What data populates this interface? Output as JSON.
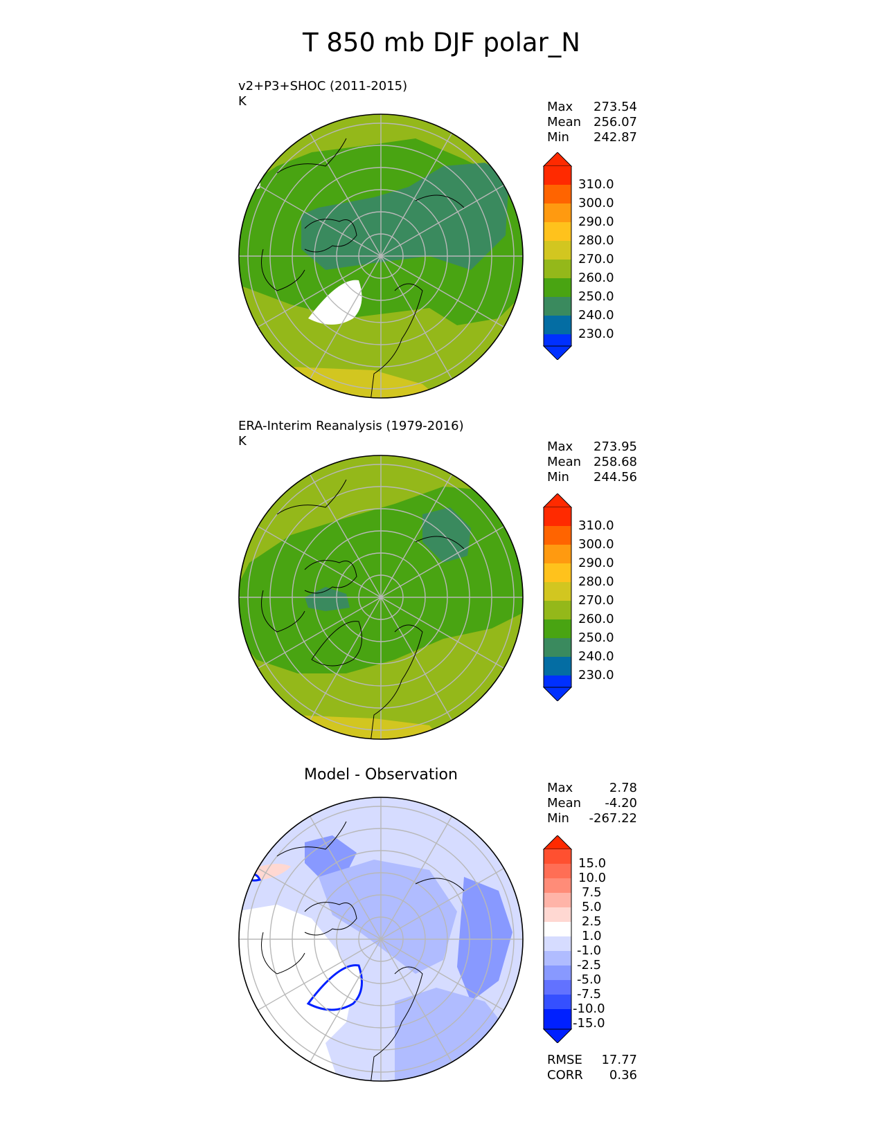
{
  "figure": {
    "title": "T 850 mb DJF polar_N"
  },
  "panels": [
    {
      "id": "test",
      "title_line1": "v2+P3+SHOC (2011-2015)",
      "title_line2": "K",
      "center_title": "",
      "stats": [
        {
          "label": "Max",
          "value": "273.54"
        },
        {
          "label": "Mean",
          "value": "256.07"
        },
        {
          "label": "Min",
          "value": "242.87"
        }
      ],
      "extra_stats": []
    },
    {
      "id": "reference",
      "title_line1": "ERA-Interim Reanalysis (1979-2016)",
      "title_line2": "K",
      "center_title": "",
      "stats": [
        {
          "label": "Max",
          "value": "273.95"
        },
        {
          "label": "Mean",
          "value": "258.68"
        },
        {
          "label": "Min",
          "value": "244.56"
        }
      ],
      "extra_stats": []
    },
    {
      "id": "difference",
      "title_line1": "",
      "title_line2": "",
      "center_title": "Model - Observation",
      "stats": [
        {
          "label": "Max",
          "value": "2.78"
        },
        {
          "label": "Mean",
          "value": "-4.20"
        },
        {
          "label": "Min",
          "value": "-267.22"
        }
      ],
      "extra_stats": [
        {
          "label": "RMSE",
          "value": "17.77"
        },
        {
          "label": "CORR",
          "value": "0.36"
        }
      ]
    }
  ],
  "colorbars": {
    "temperature": {
      "tick_labels": [
        "310.0",
        "300.0",
        "290.0",
        "280.0",
        "270.0",
        "260.0",
        "250.0",
        "240.0",
        "230.0"
      ],
      "colors_top_to_bottom": [
        "#ff2a00",
        "#ff6400",
        "#ff9a10",
        "#ffc21c",
        "#d2c620",
        "#94b81a",
        "#49a412",
        "#3a8a5e",
        "#046da3",
        "#0030ff"
      ]
    },
    "difference": {
      "tick_labels": [
        "15.0",
        "10.0",
        "7.5",
        "5.0",
        "2.5",
        "1.0",
        "-1.0",
        "-2.5",
        "-5.0",
        "-7.5",
        "-10.0",
        "-15.0"
      ],
      "colors_top_to_bottom": [
        "#ff2a00",
        "#ff5030",
        "#ff6e55",
        "#ff8c78",
        "#ffb4a8",
        "#ffd8d2",
        "#ffffff",
        "#d6dcff",
        "#b0bcff",
        "#8899ff",
        "#6272ff",
        "#3550ff",
        "#0020ff"
      ]
    }
  },
  "chart_data": [
    {
      "type": "heatmap",
      "projection": "north polar stereographic",
      "title": "v2+P3+SHOC (2011-2015)",
      "units": "K",
      "stats": {
        "max": 273.54,
        "mean": 256.07,
        "min": 242.87
      },
      "contour_levels": [
        230,
        240,
        250,
        260,
        270,
        280,
        290,
        300,
        310
      ]
    },
    {
      "type": "heatmap",
      "projection": "north polar stereographic",
      "title": "ERA-Interim Reanalysis (1979-2016)",
      "units": "K",
      "stats": {
        "max": 273.95,
        "mean": 258.68,
        "min": 244.56
      },
      "contour_levels": [
        230,
        240,
        250,
        260,
        270,
        280,
        290,
        300,
        310
      ]
    },
    {
      "type": "heatmap",
      "projection": "north polar stereographic",
      "title": "Model - Observation",
      "stats": {
        "max": 2.78,
        "mean": -4.2,
        "min": -267.22,
        "rmse": 17.77,
        "corr": 0.36
      },
      "contour_levels": [
        -15,
        -10,
        -7.5,
        -5,
        -2.5,
        -1,
        1,
        2.5,
        5,
        7.5,
        10,
        15
      ]
    }
  ]
}
